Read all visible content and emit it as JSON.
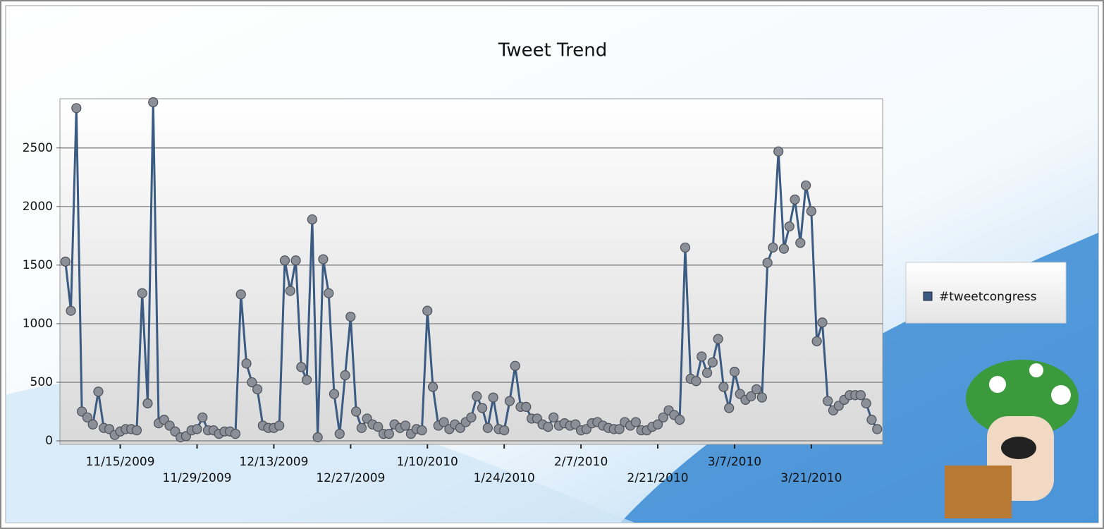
{
  "chart_data": {
    "type": "line",
    "title": "Tweet Trend",
    "x": [
      "11/5/2009",
      "11/6/2009",
      "11/7/2009",
      "11/8/2009",
      "11/9/2009",
      "11/10/2009",
      "11/11/2009",
      "11/12/2009",
      "11/13/2009",
      "11/14/2009",
      "11/15/2009",
      "11/16/2009",
      "11/17/2009",
      "11/18/2009",
      "11/19/2009",
      "11/20/2009",
      "11/21/2009",
      "11/22/2009",
      "11/23/2009",
      "11/24/2009",
      "11/25/2009",
      "11/26/2009",
      "11/27/2009",
      "11/28/2009",
      "11/29/2009",
      "11/30/2009",
      "12/1/2009",
      "12/2/2009",
      "12/3/2009",
      "12/4/2009",
      "12/5/2009",
      "12/6/2009",
      "12/7/2009",
      "12/8/2009",
      "12/9/2009",
      "12/10/2009",
      "12/11/2009",
      "12/12/2009",
      "12/13/2009",
      "12/14/2009",
      "12/15/2009",
      "12/16/2009",
      "12/17/2009",
      "12/18/2009",
      "12/19/2009",
      "12/20/2009",
      "12/21/2009",
      "12/22/2009",
      "12/23/2009",
      "12/24/2009",
      "12/25/2009",
      "12/26/2009",
      "12/27/2009",
      "12/28/2009",
      "12/29/2009",
      "12/30/2009",
      "12/31/2009",
      "1/1/2010",
      "1/2/2010",
      "1/3/2010",
      "1/4/2010",
      "1/5/2010",
      "1/6/2010",
      "1/7/2010",
      "1/8/2010",
      "1/9/2010",
      "1/10/2010",
      "1/11/2010",
      "1/12/2010",
      "1/13/2010",
      "1/14/2010",
      "1/15/2010",
      "1/16/2010",
      "1/17/2010",
      "1/18/2010",
      "1/19/2010",
      "1/20/2010",
      "1/21/2010",
      "1/22/2010",
      "1/23/2010",
      "1/24/2010",
      "1/25/2010",
      "1/26/2010",
      "1/27/2010",
      "1/28/2010",
      "1/29/2010",
      "1/30/2010",
      "1/31/2010",
      "2/1/2010",
      "2/2/2010",
      "2/3/2010",
      "2/4/2010",
      "2/5/2010",
      "2/6/2010",
      "2/7/2010",
      "2/8/2010",
      "2/9/2010",
      "2/10/2010",
      "2/11/2010",
      "2/12/2010",
      "2/13/2010",
      "2/14/2010",
      "2/15/2010",
      "2/16/2010",
      "2/17/2010",
      "2/18/2010",
      "2/19/2010",
      "2/20/2010",
      "2/21/2010",
      "2/22/2010",
      "2/23/2010",
      "2/24/2010",
      "2/25/2010",
      "2/26/2010",
      "2/27/2010",
      "2/28/2010",
      "3/1/2010",
      "3/2/2010",
      "3/3/2010",
      "3/4/2010",
      "3/5/2010",
      "3/6/2010",
      "3/7/2010",
      "3/8/2010",
      "3/9/2010",
      "3/10/2010",
      "3/11/2010",
      "3/12/2010",
      "3/13/2010",
      "3/14/2010",
      "3/15/2010",
      "3/16/2010",
      "3/17/2010",
      "3/18/2010",
      "3/19/2010",
      "3/20/2010",
      "3/21/2010",
      "3/22/2010",
      "3/23/2010",
      "3/24/2010",
      "3/25/2010",
      "3/26/2010",
      "3/27/2010",
      "3/28/2010",
      "3/29/2010",
      "3/30/2010",
      "3/31/2010",
      "4/1/2010",
      "4/2/2010"
    ],
    "series": [
      {
        "name": "#tweetcongress",
        "color": "#3b5b82",
        "values": [
          1530,
          1110,
          2840,
          250,
          200,
          140,
          420,
          110,
          100,
          50,
          80,
          100,
          100,
          90,
          1260,
          320,
          2890,
          150,
          180,
          130,
          80,
          30,
          40,
          90,
          100,
          200,
          90,
          90,
          60,
          80,
          80,
          60,
          1250,
          660,
          500,
          440,
          130,
          110,
          110,
          130,
          1540,
          1280,
          1540,
          630,
          520,
          1890,
          30,
          1550,
          1260,
          400,
          60,
          560,
          1060,
          250,
          110,
          190,
          140,
          120,
          60,
          60,
          140,
          110,
          130,
          60,
          100,
          90,
          1110,
          460,
          130,
          160,
          100,
          140,
          110,
          160,
          200,
          380,
          280,
          110,
          370,
          100,
          90,
          340,
          640,
          290,
          290,
          190,
          190,
          140,
          120,
          200,
          130,
          150,
          130,
          140,
          90,
          100,
          150,
          160,
          130,
          110,
          100,
          100,
          160,
          130,
          160,
          90,
          90,
          120,
          140,
          200,
          260,
          220,
          180,
          1650,
          530,
          510,
          720,
          580,
          670,
          870,
          460,
          280,
          590,
          400,
          350,
          380,
          440,
          370,
          1520,
          1650,
          2470,
          1640,
          1830,
          2060,
          1690,
          2180,
          1960,
          850,
          1010,
          340,
          260,
          300,
          350,
          390,
          390,
          390,
          320,
          180,
          100
        ]
      }
    ],
    "xlim": [
      "11/4/2009",
      "4/3/2010"
    ],
    "xticks": [
      "11/15/2009",
      "11/29/2009",
      "12/13/2009",
      "12/27/2009",
      "1/10/2010",
      "1/24/2010",
      "2/7/2010",
      "2/21/2010",
      "3/7/2010",
      "3/21/2010"
    ],
    "ylim": [
      -30,
      2920
    ],
    "yticks": [
      0,
      500,
      1000,
      1500,
      2000,
      2500
    ],
    "grid": true,
    "legend": "right"
  }
}
